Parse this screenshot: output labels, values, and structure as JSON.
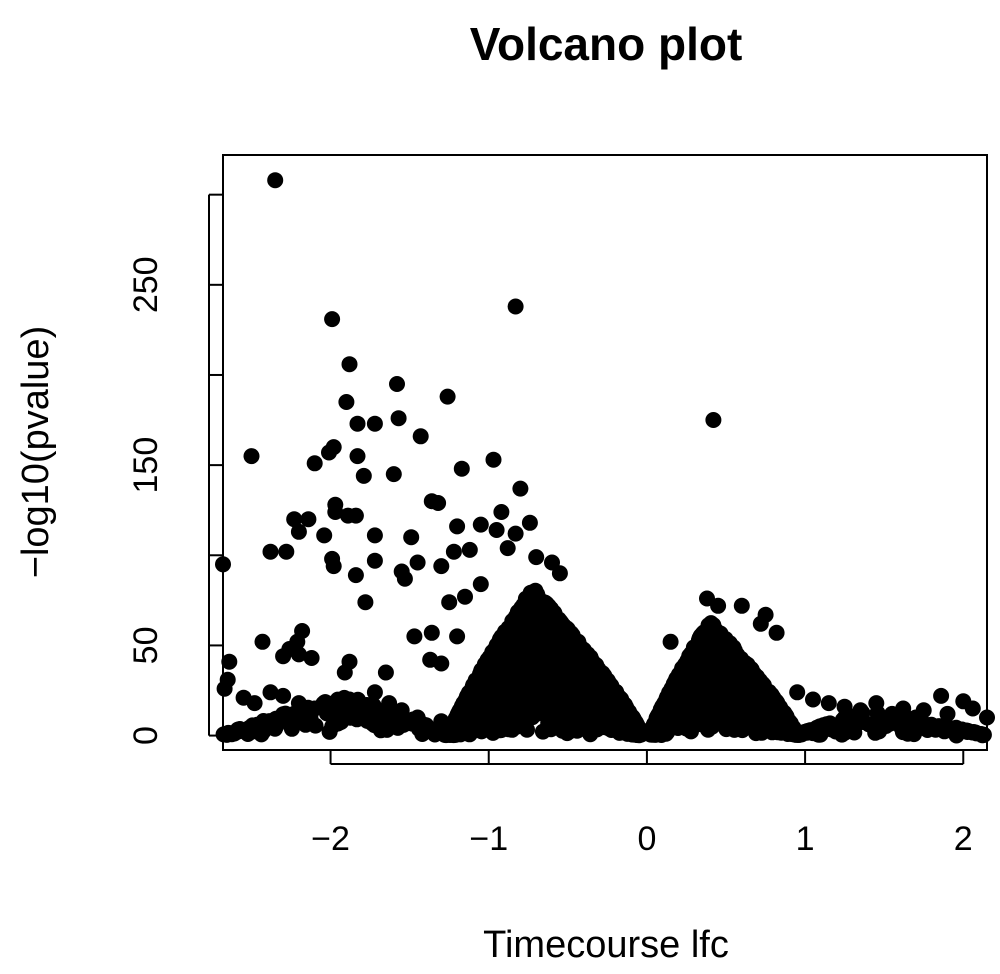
{
  "chart_data": {
    "type": "scatter",
    "title": "Volcano plot",
    "xlabel": "Timecourse lfc",
    "ylabel": "−log10(pvalue)",
    "xlim": [
      -2.68,
      2.15
    ],
    "ylim": [
      -8,
      322
    ],
    "x_ticks": [
      -2,
      -1,
      0,
      1,
      2
    ],
    "x_tick_labels": [
      "−2",
      "−1",
      "0",
      "1",
      "2"
    ],
    "y_ticks": [
      0,
      50,
      100,
      150,
      200,
      250,
      300
    ],
    "y_tick_labels": [
      "0",
      "50",
      "",
      "150",
      "",
      "250",
      ""
    ],
    "point_color": "#000000",
    "grid": false,
    "legend": "none",
    "outliers": [
      {
        "x": -2.35,
        "y": 308
      },
      {
        "x": -0.83,
        "y": 238
      },
      {
        "x": -1.99,
        "y": 231
      },
      {
        "x": -1.88,
        "y": 206
      },
      {
        "x": -1.58,
        "y": 195
      },
      {
        "x": -1.26,
        "y": 188
      },
      {
        "x": -1.9,
        "y": 185
      },
      {
        "x": 0.42,
        "y": 175
      },
      {
        "x": -1.57,
        "y": 176
      },
      {
        "x": -1.83,
        "y": 173
      },
      {
        "x": -1.72,
        "y": 173
      },
      {
        "x": -1.43,
        "y": 166
      },
      {
        "x": -1.98,
        "y": 160
      },
      {
        "x": -2.01,
        "y": 157
      },
      {
        "x": -1.83,
        "y": 155
      },
      {
        "x": -2.5,
        "y": 155
      },
      {
        "x": -0.97,
        "y": 153
      },
      {
        "x": -2.1,
        "y": 151
      },
      {
        "x": -1.17,
        "y": 148
      },
      {
        "x": -1.79,
        "y": 144
      },
      {
        "x": -1.6,
        "y": 145
      },
      {
        "x": -0.8,
        "y": 137
      },
      {
        "x": -1.36,
        "y": 130
      },
      {
        "x": -1.32,
        "y": 129
      },
      {
        "x": -1.97,
        "y": 128
      },
      {
        "x": -0.92,
        "y": 124
      },
      {
        "x": -1.97,
        "y": 124
      },
      {
        "x": -1.89,
        "y": 122
      },
      {
        "x": -1.84,
        "y": 122
      },
      {
        "x": -2.23,
        "y": 120
      },
      {
        "x": -2.14,
        "y": 120
      },
      {
        "x": -0.74,
        "y": 118
      },
      {
        "x": -2.2,
        "y": 113
      },
      {
        "x": -2.04,
        "y": 111
      },
      {
        "x": -1.72,
        "y": 111
      },
      {
        "x": -1.49,
        "y": 110
      },
      {
        "x": -1.2,
        "y": 116
      },
      {
        "x": -1.05,
        "y": 117
      },
      {
        "x": -0.95,
        "y": 114
      },
      {
        "x": -0.83,
        "y": 112
      },
      {
        "x": -2.38,
        "y": 102
      },
      {
        "x": -2.28,
        "y": 102
      },
      {
        "x": -1.99,
        "y": 98
      },
      {
        "x": -1.98,
        "y": 94
      },
      {
        "x": -1.72,
        "y": 97
      },
      {
        "x": -1.84,
        "y": 89
      },
      {
        "x": -1.53,
        "y": 87
      },
      {
        "x": -1.55,
        "y": 91
      },
      {
        "x": -1.45,
        "y": 96
      },
      {
        "x": -1.3,
        "y": 94
      },
      {
        "x": -1.22,
        "y": 102
      },
      {
        "x": -1.12,
        "y": 103
      },
      {
        "x": -0.88,
        "y": 104
      },
      {
        "x": -0.7,
        "y": 99
      },
      {
        "x": -0.6,
        "y": 96
      },
      {
        "x": -1.78,
        "y": 74
      },
      {
        "x": -2.68,
        "y": 95
      },
      {
        "x": -1.05,
        "y": 84
      },
      {
        "x": -1.15,
        "y": 77
      },
      {
        "x": -1.25,
        "y": 74
      },
      {
        "x": -0.55,
        "y": 90
      },
      {
        "x": 0.38,
        "y": 76
      },
      {
        "x": 0.45,
        "y": 72
      },
      {
        "x": 0.6,
        "y": 72
      },
      {
        "x": 0.75,
        "y": 67
      },
      {
        "x": 0.72,
        "y": 62
      },
      {
        "x": 0.82,
        "y": 57
      },
      {
        "x": -2.18,
        "y": 58
      },
      {
        "x": -2.43,
        "y": 52
      },
      {
        "x": -2.26,
        "y": 48
      },
      {
        "x": -2.21,
        "y": 52
      },
      {
        "x": -2.2,
        "y": 45
      },
      {
        "x": -2.12,
        "y": 43
      },
      {
        "x": -2.3,
        "y": 44
      },
      {
        "x": -1.36,
        "y": 57
      },
      {
        "x": -1.2,
        "y": 55
      },
      {
        "x": -1.47,
        "y": 55
      },
      {
        "x": -1.37,
        "y": 42
      },
      {
        "x": -1.3,
        "y": 40
      },
      {
        "x": -1.88,
        "y": 41
      },
      {
        "x": -1.91,
        "y": 35
      },
      {
        "x": -1.65,
        "y": 35
      },
      {
        "x": 0.15,
        "y": 52
      },
      {
        "x": -2.64,
        "y": 41
      },
      {
        "x": -2.65,
        "y": 31
      },
      {
        "x": -2.67,
        "y": 26
      },
      {
        "x": -2.55,
        "y": 21
      },
      {
        "x": -2.48,
        "y": 18
      },
      {
        "x": -2.38,
        "y": 24
      },
      {
        "x": -2.3,
        "y": 22
      },
      {
        "x": -2.2,
        "y": 18
      },
      {
        "x": -2.1,
        "y": 15
      },
      {
        "x": -1.98,
        "y": 18
      },
      {
        "x": -1.88,
        "y": 20
      },
      {
        "x": -1.8,
        "y": 17
      },
      {
        "x": -1.72,
        "y": 24
      },
      {
        "x": -1.63,
        "y": 18
      },
      {
        "x": -1.55,
        "y": 14
      },
      {
        "x": -1.45,
        "y": 10
      },
      {
        "x": -1.62,
        "y": 6
      },
      {
        "x": -1.3,
        "y": 8
      },
      {
        "x": 0.95,
        "y": 24
      },
      {
        "x": 1.05,
        "y": 20
      },
      {
        "x": 1.15,
        "y": 18
      },
      {
        "x": 1.25,
        "y": 16
      },
      {
        "x": 1.35,
        "y": 14
      },
      {
        "x": 1.45,
        "y": 18
      },
      {
        "x": 1.55,
        "y": 12
      },
      {
        "x": 1.62,
        "y": 15
      },
      {
        "x": 1.7,
        "y": 10
      },
      {
        "x": 1.75,
        "y": 14
      },
      {
        "x": 1.86,
        "y": 22
      },
      {
        "x": 1.85,
        "y": 4
      },
      {
        "x": 1.9,
        "y": 12
      },
      {
        "x": 2.0,
        "y": 19
      },
      {
        "x": 2.06,
        "y": 15
      },
      {
        "x": 2.15,
        "y": 10
      },
      {
        "x": 1.3,
        "y": 6
      },
      {
        "x": 1.48,
        "y": 4
      },
      {
        "x": 1.15,
        "y": 5
      }
    ],
    "dense_regions": [
      {
        "x_from": -1.25,
        "x_to": -0.03,
        "peak_x": -0.72,
        "peak_y": 82,
        "count": 2600
      },
      {
        "x_from": 0.02,
        "x_to": 0.95,
        "peak_x": 0.4,
        "peak_y": 64,
        "count": 1400
      },
      {
        "x_from": -2.68,
        "x_to": -1.25,
        "peak_x": -1.9,
        "peak_y": 22,
        "count": 140
      },
      {
        "x_from": 0.95,
        "x_to": 2.15,
        "peak_x": 1.4,
        "peak_y": 14,
        "count": 110
      }
    ]
  }
}
